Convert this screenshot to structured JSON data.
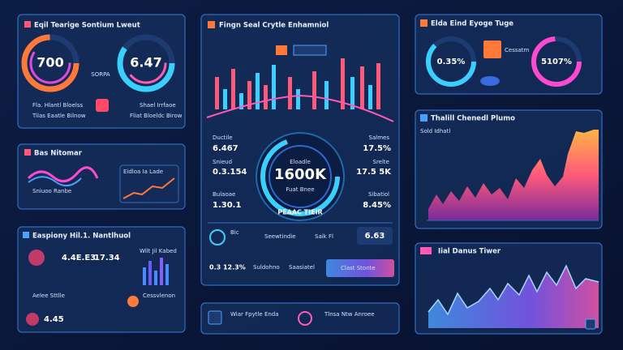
{
  "header": {
    "title": "Eqil Tearige Sontium Lweut"
  },
  "panels": [
    {
      "title": "Eqil Tearige Sontium Lweut",
      "gauge_left": "700",
      "gauge_right": "6.47",
      "tag": "SORPA",
      "items": [
        "Fla. Hlantl Bloelss",
        "Tilas Eaatle Bilnow",
        "Shael Irrfaoe",
        "Fliat Bloeldc Birow"
      ]
    },
    {
      "title": "Bas Nitomar",
      "items": [
        "Sniuoo Ranbe",
        "Eidloa Ia Lade"
      ]
    },
    {
      "title": "Easpiony Hil.1. Nantlhuol",
      "values": [
        "4.4E.E3",
        "17.34",
        "4.45"
      ],
      "items": [
        "Wilt Jil Kabed",
        "Aelee Sttlle",
        "Cessvlenon"
      ]
    },
    {
      "title": "Fingn Seal Crytle Enhamniol",
      "gauge": "1600K",
      "gauge_top": "Eloadle",
      "gauge_bottom": "Fuat Bnee",
      "gauge_label": "PEAAC TIEIR",
      "left": [
        [
          "Ductile",
          "6.467"
        ],
        [
          "Snieud",
          "0.3.154"
        ],
        [
          "Bulaoae",
          "1.30.1"
        ]
      ],
      "right": [
        [
          "Salmes",
          "17.5%"
        ],
        [
          "Srelte",
          "17.5 5K"
        ],
        [
          "Sibatiol",
          "8.45%"
        ]
      ],
      "bottom": [
        "Bic",
        "Seewtindie",
        "Saik Fl",
        "6.63",
        "0.3 12.3%",
        "Suldohno",
        "Saasiatel",
        "Clast Stonte"
      ]
    },
    {
      "items": [
        "Wiar Fpytle Enda",
        "Tlnsa Ntw Anroee"
      ]
    },
    {
      "title": "Elda Eind Eyoge Tuge",
      "gauge_left": "0.35%",
      "gauge_right": "5107%",
      "tag": "Cessatm"
    },
    {
      "title": "Thalill Chenedl Plumo",
      "tag": "Sold Idhatl"
    },
    {
      "title": "Iial Danus Tiwer"
    }
  ]
}
